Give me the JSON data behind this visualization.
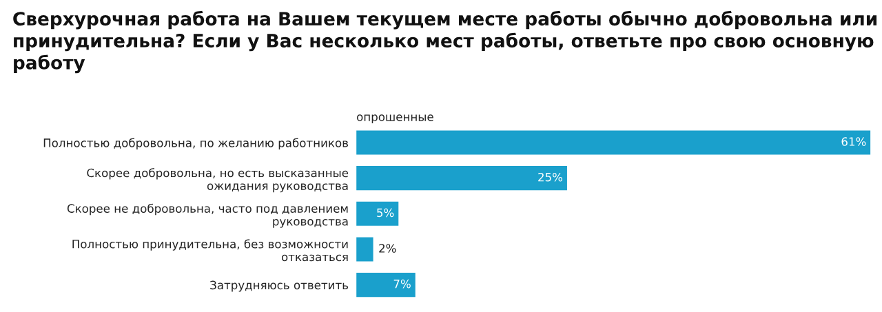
{
  "chart_data": {
    "type": "bar",
    "orientation": "horizontal",
    "title": "Сверхурочная работа на Вашем текущем месте работы обычно добровольна или принудительна? Если у Вас несколько мест работы, ответьте про свою основную работу",
    "xlabel": "опрошенные",
    "categories": [
      "Полностью добровольна, по желанию работников",
      "Скорее добровольна, но есть высказанные\nожидания руководства",
      "Скорее не добровольна, часто под давлением\nруководства",
      "Полностью принудительна, без возможности\nотказаться",
      "Затрудняюсь ответить"
    ],
    "values": [
      61,
      25,
      5,
      2,
      7
    ],
    "value_labels": [
      "61%",
      "25%",
      "5%",
      "2%",
      "7%"
    ],
    "color": "#1aa0cc",
    "xlim": [
      0,
      61
    ],
    "grid": false,
    "legend": false
  }
}
